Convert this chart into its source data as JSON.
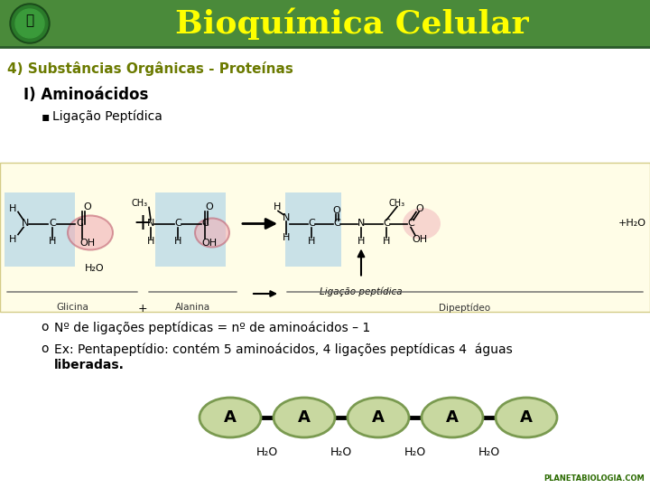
{
  "title": "Bioquímica Celular",
  "title_color": "#FFFF00",
  "header_bg": "#4a8a3a",
  "header_line": "#2a5a2a",
  "subtitle1": "4) Substâncias Orgânicas - Proteínas",
  "subtitle1_color": "#6b7a00",
  "subtitle2": "I) Aminoácidos",
  "subtitle2_color": "#000000",
  "bullet": "Ligação Peptídica",
  "bullet_color": "#000000",
  "body_bg": "#ffffff",
  "diagram_bg": "#fffde7",
  "diagram_border": "#d4cc88",
  "amino_box_color": "#b8d8e8",
  "pink_highlight": "#f0b0b8",
  "bullet1": "Nº de ligações peptídicas = nº de aminoácidos – 1",
  "bullet2_1": "Ex: Pentapeptídio: contém 5 aminoácidos, 4 ligações peptídicas 4  águas",
  "bullet2_2": "liberadas.",
  "amino_fill": "#c8d8a0",
  "amino_edge": "#7a9a50",
  "amino_labels": [
    "A",
    "A",
    "A",
    "A",
    "A"
  ],
  "water_labels": [
    "H₂O",
    "H₂O",
    "H₂O",
    "H₂O"
  ],
  "logo_text": "PLANETABIOLOGIA.COM",
  "logo_color": "#2a6a00"
}
